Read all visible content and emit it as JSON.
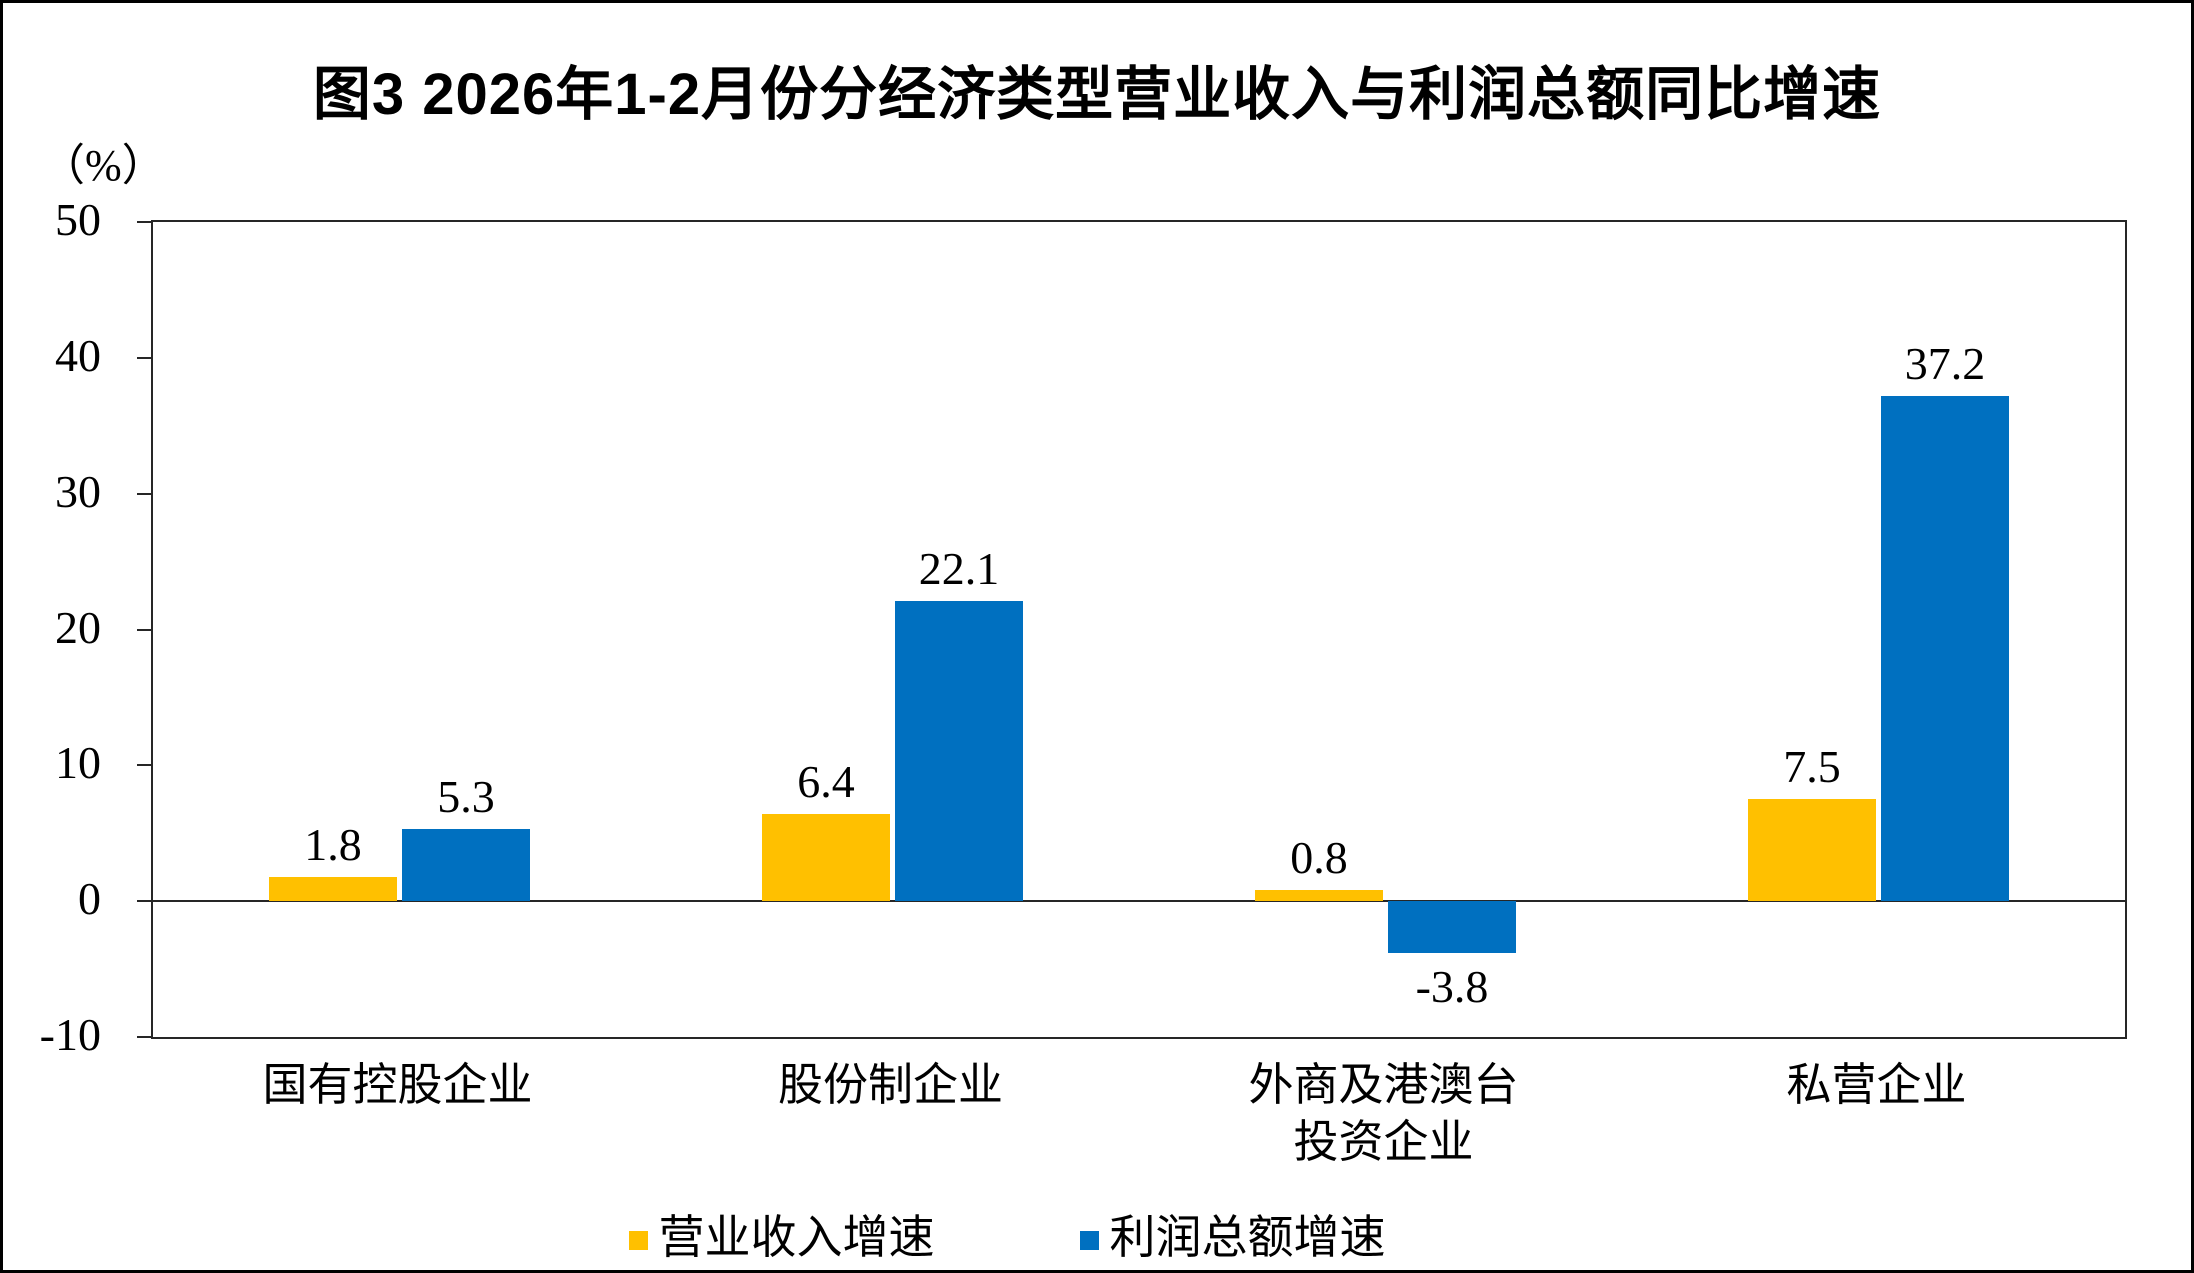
{
  "title": "图3 2026年1-2月份分经济类型营业收入与利润总额同比增速",
  "y_axis_unit": "（%）",
  "colors": {
    "revenue_bar": "#FFC000",
    "profit_bar": "#0070C0",
    "axis_line": "#262626",
    "text": "#000000",
    "background": "#FFFFFF"
  },
  "chart_data": {
    "type": "bar",
    "title": "图3 2026年1-2月份分经济类型营业收入与利润总额同比增速",
    "categories": [
      "国有控股企业",
      "股份制企业",
      "外商及港澳台\n投资企业",
      "私营企业"
    ],
    "series": [
      {
        "name": "营业收入增速",
        "color": "#FFC000",
        "values": [
          1.8,
          6.4,
          0.8,
          7.5
        ]
      },
      {
        "name": "利润总额增速",
        "color": "#0070C0",
        "values": [
          5.3,
          22.1,
          -3.8,
          37.2
        ]
      }
    ],
    "xlabel": "",
    "ylabel": "（%）",
    "ylim": [
      -10,
      50
    ],
    "yticks": [
      50,
      40,
      30,
      20,
      10,
      0,
      -10
    ],
    "grid": false,
    "legend_position": "bottom",
    "value_labels_shown": true
  }
}
